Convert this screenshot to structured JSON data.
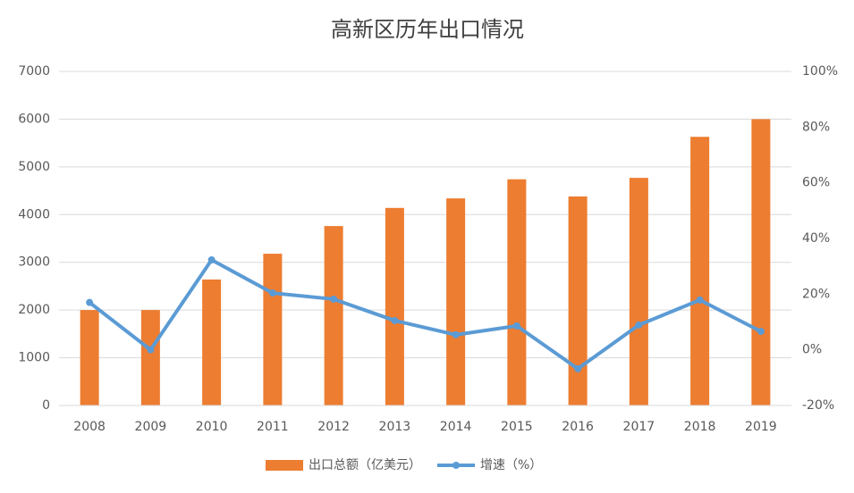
{
  "chart_data": {
    "type": "bar",
    "title": "高新区历年出口情况",
    "categories": [
      "2008",
      "2009",
      "2010",
      "2011",
      "2012",
      "2013",
      "2014",
      "2015",
      "2016",
      "2017",
      "2018",
      "2019"
    ],
    "series": [
      {
        "name": "出口总额（亿美元）",
        "type": "bar",
        "color": "#ed7d31",
        "values": [
          2000,
          2000,
          2640,
          3180,
          3760,
          4140,
          4340,
          4740,
          4380,
          4770,
          5630,
          6000
        ]
      },
      {
        "name": "增速（%）",
        "type": "line",
        "axis": "y2",
        "color": "#5b9bd5",
        "values": [
          17,
          0,
          32.3,
          20.4,
          18.2,
          10.5,
          5.4,
          8.6,
          -6.8,
          8.9,
          17.9,
          6.6
        ]
      }
    ],
    "ylim": [
      0,
      7000
    ],
    "yticks": [
      0,
      1000,
      2000,
      3000,
      4000,
      5000,
      6000,
      7000
    ],
    "y2lim": [
      -20,
      100
    ],
    "y2ticks": [
      {
        "value": -20,
        "label": "-20%"
      },
      {
        "value": 0,
        "label": "0%"
      },
      {
        "value": 20,
        "label": "20%"
      },
      {
        "value": 40,
        "label": "40%"
      },
      {
        "value": 60,
        "label": "60%"
      },
      {
        "value": 80,
        "label": "80%"
      },
      {
        "value": 100,
        "label": "100%"
      }
    ],
    "grid": true,
    "legend": "bottom"
  }
}
